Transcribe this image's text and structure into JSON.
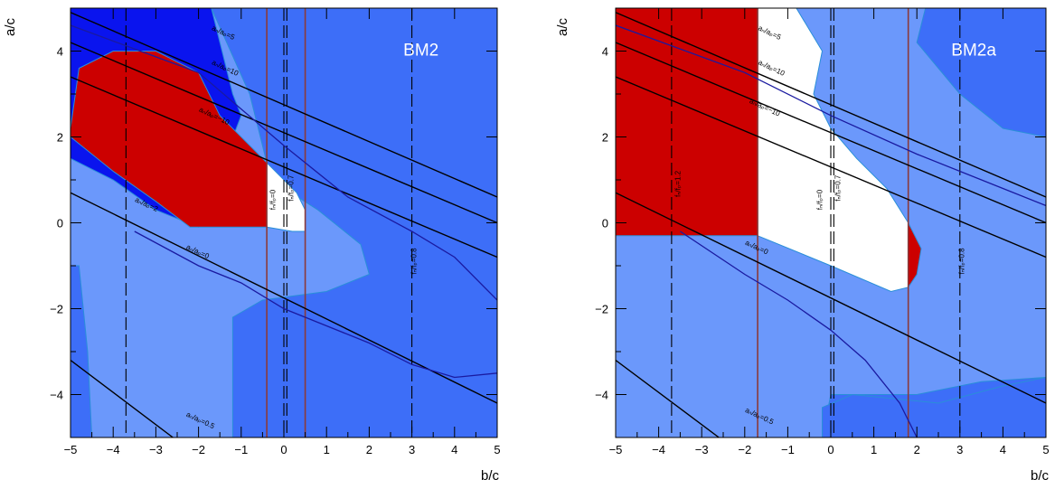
{
  "chart_data": [
    {
      "type": "contour",
      "benchmark_label": "BM2",
      "xlabel": "b/c",
      "ylabel": "a/c",
      "xlim": [
        -5,
        5
      ],
      "ylim": [
        -5,
        5
      ],
      "xticks": [
        "−5",
        "−4",
        "−3",
        "−2",
        "−1",
        "0",
        "1",
        "2",
        "3",
        "4",
        "5"
      ],
      "yticks": [
        "−4",
        "−2",
        "0",
        "2",
        "4"
      ],
      "region_colors": {
        "light": "#6b98fb",
        "medium": "#3d6ef8",
        "dark": "#0a14ee",
        "red": "#cc0000",
        "white": "#ffffff"
      },
      "regions": [
        {
          "color": "light",
          "points": [
            [
              -5,
              5
            ],
            [
              -1.7,
              5
            ],
            [
              -0.8,
              3.0
            ],
            [
              -0.3,
              1.0
            ],
            [
              0.8,
              0.3
            ],
            [
              1.8,
              -0.5
            ],
            [
              2.0,
              -1.2
            ],
            [
              1.0,
              -1.6
            ],
            [
              -0.5,
              -1.8
            ],
            [
              -1.2,
              -2.2
            ],
            [
              -1.2,
              -5
            ],
            [
              -4.5,
              -5
            ],
            [
              -4.6,
              -3.0
            ],
            [
              -4.8,
              -1.0
            ],
            [
              -5,
              -1.0
            ]
          ]
        },
        {
          "color": "dark",
          "points": [
            [
              -5,
              5
            ],
            [
              -1.7,
              5
            ],
            [
              -1.2,
              3.0
            ],
            [
              -1.0,
              2.5
            ],
            [
              -2.0,
              -0.1
            ],
            [
              -3.0,
              0.3
            ],
            [
              -4.0,
              1.0
            ],
            [
              -5,
              1.5
            ]
          ]
        },
        {
          "color": "red",
          "points": [
            [
              -5,
              2.2
            ],
            [
              -4.8,
              3.6
            ],
            [
              -4.0,
              4.0
            ],
            [
              -3.0,
              4.0
            ],
            [
              -2.0,
              3.5
            ],
            [
              -1.5,
              2.5
            ],
            [
              -0.4,
              1.4
            ],
            [
              -0.4,
              -0.1
            ],
            [
              -1.0,
              -0.1
            ],
            [
              -2.2,
              -0.1
            ],
            [
              -3.0,
              0.5
            ],
            [
              -4.0,
              1.2
            ],
            [
              -5,
              2.0
            ]
          ]
        },
        {
          "color": "white",
          "points": [
            [
              -0.4,
              1.4
            ],
            [
              -0.1,
              1.1
            ],
            [
              0.3,
              0.7
            ],
            [
              0.5,
              0.3
            ],
            [
              0.5,
              -0.2
            ],
            [
              0.2,
              -0.2
            ],
            [
              -0.4,
              -0.1
            ]
          ]
        }
      ],
      "vertical_dashed": [
        -3.7,
        0.0,
        0.07,
        3.0
      ],
      "vertical_brown": [
        -0.4,
        0.5
      ],
      "diagonal_lines": [
        {
          "x1": -5,
          "y1": 4.9,
          "x2": 5,
          "y2": 0.6
        },
        {
          "x1": -5,
          "y1": 4.2,
          "x2": 5,
          "y2": 0.0
        },
        {
          "x1": -5,
          "y1": 3.4,
          "x2": 5,
          "y2": -0.8
        },
        {
          "x1": -5,
          "y1": 0.7,
          "x2": 5,
          "y2": -4.2
        },
        {
          "x1": -5,
          "y1": -3.2,
          "x2": -2.6,
          "y2": -5
        }
      ],
      "curves": [
        {
          "points": [
            [
              -5,
              4.6
            ],
            [
              -2,
              3.5
            ],
            [
              0,
              1.8
            ],
            [
              1.5,
              0.6
            ],
            [
              3.0,
              -0.2
            ],
            [
              4.0,
              -0.8
            ],
            [
              5,
              -1.8
            ]
          ]
        },
        {
          "points": [
            [
              -3.5,
              -0.2
            ],
            [
              -2,
              -1.0
            ],
            [
              -1,
              -1.4
            ],
            [
              0,
              -2.0
            ],
            [
              1,
              -2.4
            ],
            [
              2,
              -2.8
            ],
            [
              3,
              -3.3
            ],
            [
              4,
              -3.6
            ],
            [
              5,
              -3.5
            ]
          ]
        }
      ],
      "annotations": [
        {
          "text": "aₙ/aₚ=5",
          "x": -1.7,
          "y": 4.5
        },
        {
          "text": "aₙ/aₚ=10",
          "x": -1.7,
          "y": 3.7
        },
        {
          "text": "aₙ/aₚ=−10",
          "x": -2.0,
          "y": 2.6
        },
        {
          "text": "aₙ/aₚ=0",
          "x": -2.3,
          "y": -0.6
        },
        {
          "text": "aₙ/aₚ=0.5",
          "x": -2.3,
          "y": -4.5
        },
        {
          "text": "aₙ/aₚ=2",
          "x": -3.5,
          "y": 0.5
        },
        {
          "text": "fₙ/fₚ=0",
          "x": -0.2,
          "y": 0.3
        },
        {
          "text": "fₙ/fₚ=0.7",
          "x": 0.22,
          "y": 0.5
        },
        {
          "text": "fₙ/fₚ=0.8",
          "x": 3.1,
          "y": -1.2
        }
      ]
    },
    {
      "type": "contour",
      "benchmark_label": "BM2a",
      "xlabel": "b/c",
      "ylabel": "a/c",
      "xlim": [
        -5,
        5
      ],
      "ylim": [
        -5,
        5
      ],
      "xticks": [
        "−5",
        "−4",
        "−3",
        "−2",
        "−1",
        "0",
        "1",
        "2",
        "3",
        "4",
        "5"
      ],
      "yticks": [
        "−4",
        "−2",
        "0",
        "2",
        "4"
      ],
      "region_colors": {
        "light": "#6b98fb",
        "medium": "#3d6ef8",
        "dark": "#0a14ee",
        "red": "#cc0000",
        "white": "#ffffff"
      },
      "regions": [
        {
          "color": "light",
          "points": [
            [
              -5,
              5
            ],
            [
              2.2,
              5
            ],
            [
              2.0,
              4.2
            ],
            [
              3.0,
              3.0
            ],
            [
              4.0,
              2.2
            ],
            [
              5,
              2.0
            ],
            [
              5,
              -3.6
            ],
            [
              3.5,
              -3.7
            ],
            [
              2.0,
              -4.0
            ],
            [
              0.0,
              -4.0
            ],
            [
              -0.2,
              -5
            ],
            [
              -5,
              -5
            ]
          ]
        },
        {
          "color": "medium",
          "points": [
            [
              -0.2,
              -5
            ],
            [
              -0.2,
              -4.3
            ],
            [
              0.5,
              -4.0
            ],
            [
              2.5,
              -4.2
            ],
            [
              4.0,
              -3.8
            ],
            [
              5,
              -3.6
            ],
            [
              5,
              -5
            ]
          ]
        },
        {
          "color": "red",
          "points": [
            [
              -5,
              5
            ],
            [
              -1.7,
              5
            ],
            [
              -1.7,
              3.3
            ],
            [
              -1.7,
              1.0
            ],
            [
              -1.7,
              -0.3
            ],
            [
              -3.0,
              -0.3
            ],
            [
              -4.0,
              -0.3
            ],
            [
              -5,
              -0.3
            ]
          ]
        },
        {
          "color": "white",
          "points": [
            [
              -1.7,
              5
            ],
            [
              -0.8,
              5
            ],
            [
              -0.2,
              4.0
            ],
            [
              -0.4,
              3.0
            ],
            [
              0.0,
              2.2
            ],
            [
              0.6,
              1.5
            ],
            [
              1.3,
              0.8
            ],
            [
              1.8,
              0.0
            ],
            [
              1.8,
              -1.5
            ],
            [
              1.4,
              -1.6
            ],
            [
              0.0,
              -1.0
            ],
            [
              -1.7,
              -0.3
            ],
            [
              -1.7,
              3.3
            ]
          ]
        },
        {
          "color": "red",
          "points": [
            [
              1.8,
              0.0
            ],
            [
              2.1,
              -0.6
            ],
            [
              2.0,
              -1.2
            ],
            [
              1.8,
              -1.5
            ]
          ]
        }
      ],
      "vertical_dashed": [
        -3.7,
        0.0,
        0.07,
        3.0
      ],
      "vertical_brown": [
        -1.7,
        1.8
      ],
      "diagonal_lines": [
        {
          "x1": -5,
          "y1": 4.9,
          "x2": 5,
          "y2": 0.6
        },
        {
          "x1": -5,
          "y1": 4.2,
          "x2": 5,
          "y2": 0.0
        },
        {
          "x1": -5,
          "y1": 3.4,
          "x2": 5,
          "y2": -0.8
        },
        {
          "x1": -5,
          "y1": 0.7,
          "x2": 5,
          "y2": -4.2
        },
        {
          "x1": -5,
          "y1": -3.2,
          "x2": -2.6,
          "y2": -5
        }
      ],
      "curves": [
        {
          "points": [
            [
              -5,
              4.6
            ],
            [
              -2,
              3.5
            ],
            [
              0,
              2.5
            ],
            [
              2.0,
              1.6
            ],
            [
              4.0,
              0.8
            ],
            [
              5,
              0.4
            ]
          ]
        },
        {
          "points": [
            [
              -3.5,
              -0.2
            ],
            [
              -2,
              -1.2
            ],
            [
              -1,
              -1.8
            ],
            [
              0,
              -2.5
            ],
            [
              0.8,
              -3.2
            ],
            [
              1.6,
              -4.2
            ],
            [
              2.0,
              -5
            ]
          ]
        }
      ],
      "annotations": [
        {
          "text": "aₙ/aₚ=5",
          "x": -1.7,
          "y": 4.5
        },
        {
          "text": "aₙ/aₚ=10",
          "x": -1.7,
          "y": 3.7
        },
        {
          "text": "aₙ/aₚ=−10",
          "x": -1.9,
          "y": 2.8
        },
        {
          "text": "aₙ/aₚ=0",
          "x": -2.0,
          "y": -0.5
        },
        {
          "text": "aₙ/aₚ=0.5",
          "x": -2.0,
          "y": -4.4
        },
        {
          "text": "fₙ/fₚ=1.2",
          "x": -3.5,
          "y": 0.6
        },
        {
          "text": "fₙ/fₚ=0",
          "x": -0.2,
          "y": 0.3
        },
        {
          "text": "fₙ/fₚ=0.7",
          "x": 0.22,
          "y": 0.5
        },
        {
          "text": "fₙ/fₚ=0.8",
          "x": 3.1,
          "y": -1.2
        }
      ]
    }
  ]
}
